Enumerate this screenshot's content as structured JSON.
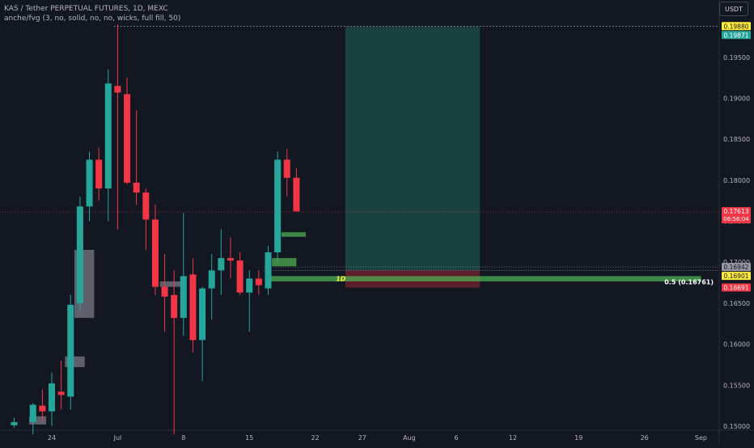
{
  "header": {
    "title": "KAS / Tether PERPETUAL FUTURES, 1D, MEXC",
    "indicator": "anche/fvg (3, no, solid, no, no, wicks, full fill, 50)",
    "currency_button": "USDT"
  },
  "colors": {
    "background": "#131722",
    "bull": "#26a69a",
    "bear": "#f23645",
    "fvg_box": "#787b86",
    "target_zone": "#1b4a44",
    "stop_zone": "#6b1f2a",
    "green_level": "#4caf50"
  },
  "chart_data": {
    "type": "candlestick",
    "y_axis": {
      "min": 0.1495,
      "max": 0.201,
      "ticks": [
        "0.15000",
        "0.15500",
        "0.16000",
        "0.16500",
        "0.17000",
        "0.17500",
        "0.18000",
        "0.18500",
        "0.19000",
        "0.19500"
      ]
    },
    "x_axis": {
      "ticks": [
        {
          "label": "24",
          "day": 0
        },
        {
          "label": "Jul",
          "day": 7
        },
        {
          "label": "8",
          "day": 14
        },
        {
          "label": "15",
          "day": 21
        },
        {
          "label": "22",
          "day": 28
        },
        {
          "label": "27",
          "day": 33
        },
        {
          "label": "Aug",
          "day": 38
        },
        {
          "label": "6",
          "day": 43
        },
        {
          "label": "12",
          "day": 49
        },
        {
          "label": "19",
          "day": 56
        },
        {
          "label": "26",
          "day": 63
        },
        {
          "label": "Sep",
          "day": 69
        }
      ]
    },
    "candles": [
      {
        "day": -4,
        "o": 0.1501,
        "h": 0.151,
        "l": 0.1498,
        "c": 0.1505
      },
      {
        "day": -2,
        "o": 0.1505,
        "h": 0.1528,
        "l": 0.149,
        "c": 0.1526
      },
      {
        "day": -1,
        "o": 0.1525,
        "h": 0.1545,
        "l": 0.1505,
        "c": 0.1518
      },
      {
        "day": 0,
        "o": 0.1518,
        "h": 0.1565,
        "l": 0.15,
        "c": 0.1552
      },
      {
        "day": 1,
        "o": 0.1542,
        "h": 0.158,
        "l": 0.152,
        "c": 0.1538
      },
      {
        "day": 2,
        "o": 0.1536,
        "h": 0.166,
        "l": 0.152,
        "c": 0.1648
      },
      {
        "day": 3,
        "o": 0.165,
        "h": 0.178,
        "l": 0.164,
        "c": 0.1768
      },
      {
        "day": 4,
        "o": 0.1768,
        "h": 0.1835,
        "l": 0.175,
        "c": 0.1825
      },
      {
        "day": 5,
        "o": 0.1825,
        "h": 0.184,
        "l": 0.1775,
        "c": 0.179
      },
      {
        "day": 6,
        "o": 0.179,
        "h": 0.1935,
        "l": 0.175,
        "c": 0.1918
      },
      {
        "day": 7,
        "o": 0.1915,
        "h": 0.199,
        "l": 0.174,
        "c": 0.1907
      },
      {
        "day": 8,
        "o": 0.1905,
        "h": 0.1925,
        "l": 0.1795,
        "c": 0.1797
      },
      {
        "day": 9,
        "o": 0.1797,
        "h": 0.1885,
        "l": 0.177,
        "c": 0.1785
      },
      {
        "day": 10,
        "o": 0.1785,
        "h": 0.179,
        "l": 0.1715,
        "c": 0.1752
      },
      {
        "day": 11,
        "o": 0.1752,
        "h": 0.177,
        "l": 0.166,
        "c": 0.167
      },
      {
        "day": 12,
        "o": 0.167,
        "h": 0.171,
        "l": 0.1615,
        "c": 0.1658
      },
      {
        "day": 13,
        "o": 0.166,
        "h": 0.169,
        "l": 0.149,
        "c": 0.1632
      },
      {
        "day": 14,
        "o": 0.1632,
        "h": 0.176,
        "l": 0.161,
        "c": 0.1683
      },
      {
        "day": 15,
        "o": 0.1685,
        "h": 0.1705,
        "l": 0.159,
        "c": 0.1605
      },
      {
        "day": 16,
        "o": 0.1605,
        "h": 0.167,
        "l": 0.1555,
        "c": 0.1668
      },
      {
        "day": 17,
        "o": 0.1668,
        "h": 0.171,
        "l": 0.163,
        "c": 0.169
      },
      {
        "day": 18,
        "o": 0.169,
        "h": 0.174,
        "l": 0.166,
        "c": 0.1705
      },
      {
        "day": 19,
        "o": 0.1705,
        "h": 0.173,
        "l": 0.168,
        "c": 0.1702
      },
      {
        "day": 20,
        "o": 0.1702,
        "h": 0.1712,
        "l": 0.166,
        "c": 0.1663
      },
      {
        "day": 21,
        "o": 0.1663,
        "h": 0.169,
        "l": 0.1615,
        "c": 0.168
      },
      {
        "day": 22,
        "o": 0.168,
        "h": 0.169,
        "l": 0.166,
        "c": 0.1672
      },
      {
        "day": 23,
        "o": 0.1668,
        "h": 0.172,
        "l": 0.166,
        "c": 0.1712
      },
      {
        "day": 24,
        "o": 0.1712,
        "h": 0.1835,
        "l": 0.17,
        "c": 0.1825
      },
      {
        "day": 25,
        "o": 0.1825,
        "h": 0.1838,
        "l": 0.178,
        "c": 0.1803
      },
      {
        "day": 26,
        "o": 0.1803,
        "h": 0.1815,
        "l": 0.1765,
        "c": 0.1762
      }
    ],
    "fvg_boxes": [
      {
        "type": "bullish",
        "from_day": -2.4,
        "to_day": -0.6,
        "top": 0.1512,
        "bottom": 0.1502
      },
      {
        "type": "bullish",
        "from_day": 1.4,
        "to_day": 3.5,
        "top": 0.1585,
        "bottom": 0.1572
      },
      {
        "type": "bullish",
        "from_day": 2.4,
        "to_day": 4.5,
        "top": 0.1715,
        "bottom": 0.1632
      },
      {
        "type": "bullish",
        "from_day": 11.5,
        "to_day": 14.3,
        "top": 0.16765,
        "bottom": 0.167
      }
    ],
    "green_levels": [
      {
        "from_day": 24.4,
        "to_day": 27.0,
        "top": 0.17365,
        "bottom": 0.1731
      },
      {
        "from_day": 23.4,
        "to_day": 26.0,
        "top": 0.1705,
        "bottom": 0.1695
      },
      {
        "from_day": 23.2,
        "to_day": 69.0,
        "top": 0.1683,
        "bottom": 0.16765,
        "label": "1D"
      }
    ],
    "position": {
      "from_day": 31.2,
      "to_day": 45.5,
      "target": 0.19871,
      "entry": 0.16901,
      "stop": 0.16691,
      "gray_line": 0.16942
    },
    "high_line": {
      "value": 0.1988,
      "from_day": 6.6
    },
    "fib_label": "0.5 (0.16761)",
    "price_labels": [
      {
        "value": 0.1988,
        "text": "0.19880",
        "bg": "#ffeb3b",
        "fg": "#131722"
      },
      {
        "value": 0.19871,
        "text": "0.19871",
        "bg": "#26a69a",
        "fg": "#ffffff"
      },
      {
        "value": 0.17613,
        "text": "0.17613",
        "sub": "06:56:04",
        "bg": "#f23645",
        "fg": "#ffffff"
      },
      {
        "value": 0.16942,
        "text": "0.16942",
        "bg": "#9598a1",
        "fg": "#131722"
      },
      {
        "value": 0.16901,
        "text": "0.16901",
        "bg": "#ffeb3b",
        "fg": "#131722"
      },
      {
        "value": 0.16691,
        "text": "0.16691",
        "bg": "#f23645",
        "fg": "#ffffff"
      }
    ],
    "current_price": 0.17613
  }
}
